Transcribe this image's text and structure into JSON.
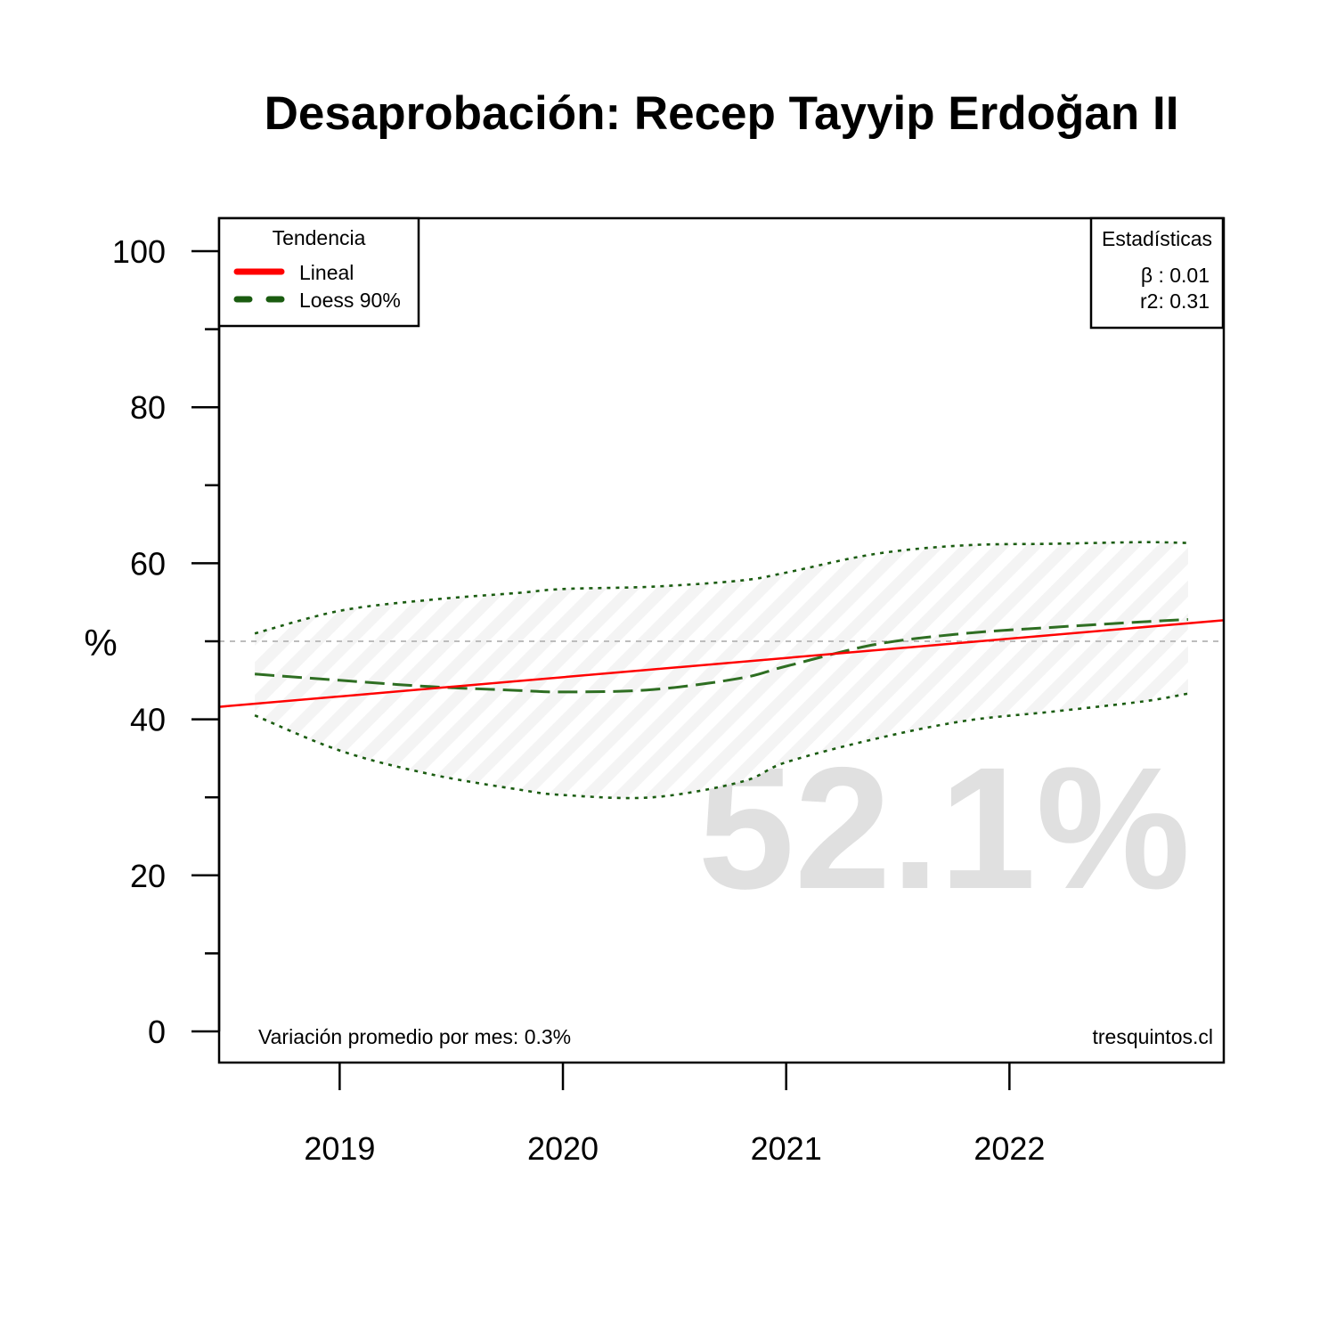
{
  "chart_data": {
    "type": "line",
    "title": "Desaprobación: Recep Tayyip Erdoğan II",
    "ylabel": "%",
    "xlabel": "",
    "ylim": [
      0,
      100
    ],
    "y_ticks": [
      0,
      20,
      40,
      60,
      80,
      100
    ],
    "y_minor_ticks": [
      10,
      30,
      50,
      70,
      90
    ],
    "x_ticks": [
      2019,
      2020,
      2021,
      2022
    ],
    "xlim": [
      2018.46,
      2022.96
    ],
    "reference_line": 50,
    "big_value": "52.1%",
    "bottom_left_note": "Variación promedio por mes: 0.3%",
    "bottom_right_note": "tresquintos.cl",
    "legend": {
      "title": "Tendencia",
      "items": [
        {
          "label": "Lineal",
          "color": "#ff0000",
          "style": "solid"
        },
        {
          "label": "Loess 90%",
          "color": "#1a5c10",
          "style": "dashed"
        }
      ],
      "placement": "top-left"
    },
    "stats": {
      "title": "Estadísticas",
      "lines": [
        "β : 0.01",
        "r2: 0.31"
      ],
      "placement": "top-right"
    },
    "series": [
      {
        "name": "Lineal",
        "color": "#ff0000",
        "x": [
          2018.46,
          2022.96
        ],
        "y": [
          41.6,
          52.7
        ]
      },
      {
        "name": "Loess 90%",
        "color": "#2e6e22",
        "x": [
          2018.62,
          2019.0,
          2019.4,
          2019.8,
          2020.0,
          2020.4,
          2020.8,
          2021.0,
          2021.4,
          2021.8,
          2022.2,
          2022.6,
          2022.8
        ],
        "y": [
          45.8,
          45.0,
          44.2,
          43.7,
          43.5,
          43.8,
          45.3,
          46.8,
          49.6,
          51.0,
          51.8,
          52.5,
          52.8
        ]
      }
    ],
    "band": {
      "x": [
        2018.62,
        2019.0,
        2019.4,
        2019.8,
        2020.0,
        2020.4,
        2020.8,
        2021.0,
        2021.4,
        2021.8,
        2022.2,
        2022.6,
        2022.8
      ],
      "upper": [
        51.0,
        53.9,
        55.3,
        56.2,
        56.7,
        57.0,
        57.8,
        58.8,
        61.2,
        62.3,
        62.5,
        62.7,
        62.6
      ],
      "lower": [
        40.5,
        36.0,
        33.0,
        31.0,
        30.3,
        30.0,
        32.0,
        34.5,
        37.5,
        39.8,
        41.0,
        42.3,
        43.3
      ],
      "color": "#1a5c10"
    }
  }
}
